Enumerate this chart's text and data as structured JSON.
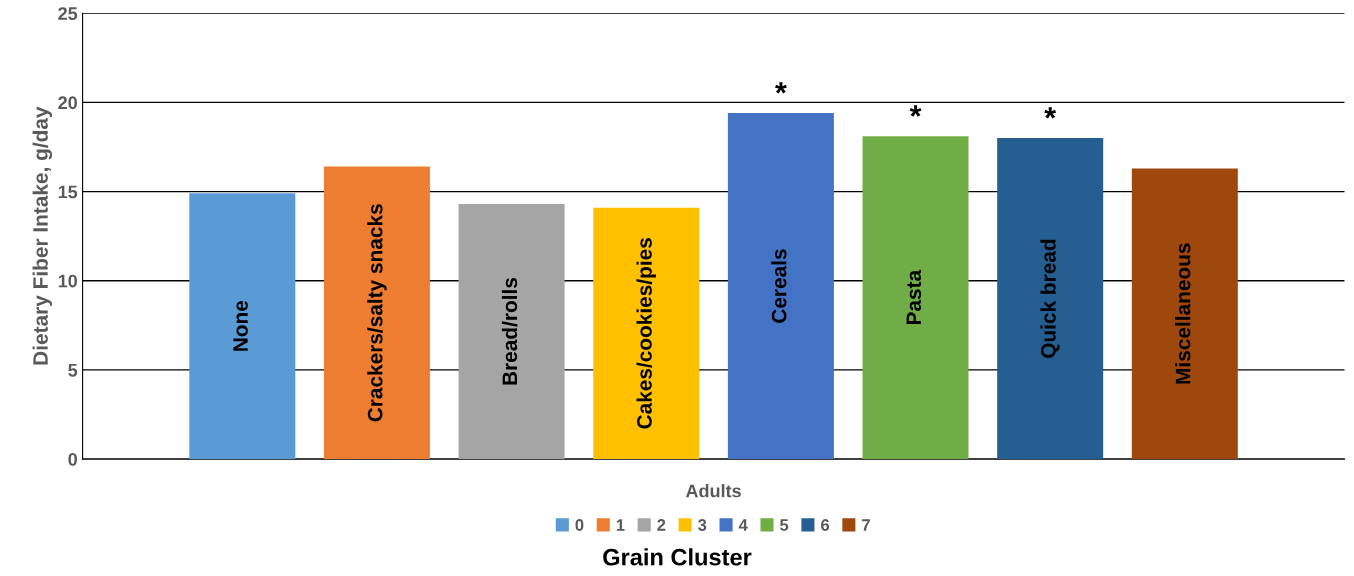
{
  "chart_data": {
    "type": "bar",
    "ylabel": "Dietary Fiber Intake, g/day",
    "xlabel": "Grain Cluster",
    "categories": [
      "Adults"
    ],
    "ylim": [
      0,
      25
    ],
    "yticks": [
      0,
      5,
      10,
      15,
      20,
      25
    ],
    "grid": "y",
    "legend": "bottom",
    "series": [
      {
        "name": "0",
        "color": "#5b9bd5",
        "values": [
          14.9
        ],
        "value_labels": [
          "None"
        ]
      },
      {
        "name": "1",
        "color": "#ed7d31",
        "values": [
          16.4
        ],
        "value_labels": [
          "Crackers/salty snacks"
        ]
      },
      {
        "name": "2",
        "color": "#a5a5a5",
        "values": [
          14.3
        ],
        "value_labels": [
          "Bread/rolls"
        ]
      },
      {
        "name": "3",
        "color": "#ffc000",
        "values": [
          14.1
        ],
        "value_labels": [
          "Cakes/cookies/pies"
        ]
      },
      {
        "name": "4",
        "color": "#4472c4",
        "values": [
          19.4
        ],
        "value_labels": [
          "Cereals"
        ]
      },
      {
        "name": "5",
        "color": "#70ad47",
        "values": [
          18.1
        ],
        "value_labels": [
          "Pasta"
        ]
      },
      {
        "name": "6",
        "color": "#255e91",
        "values": [
          18.0
        ],
        "value_labels": [
          "Quick bread"
        ]
      },
      {
        "name": "7",
        "color": "#9e480e",
        "values": [
          16.3
        ],
        "value_labels": [
          "Miscellaneous"
        ]
      }
    ],
    "annotations": [
      "*",
      "*",
      "*"
    ]
  }
}
